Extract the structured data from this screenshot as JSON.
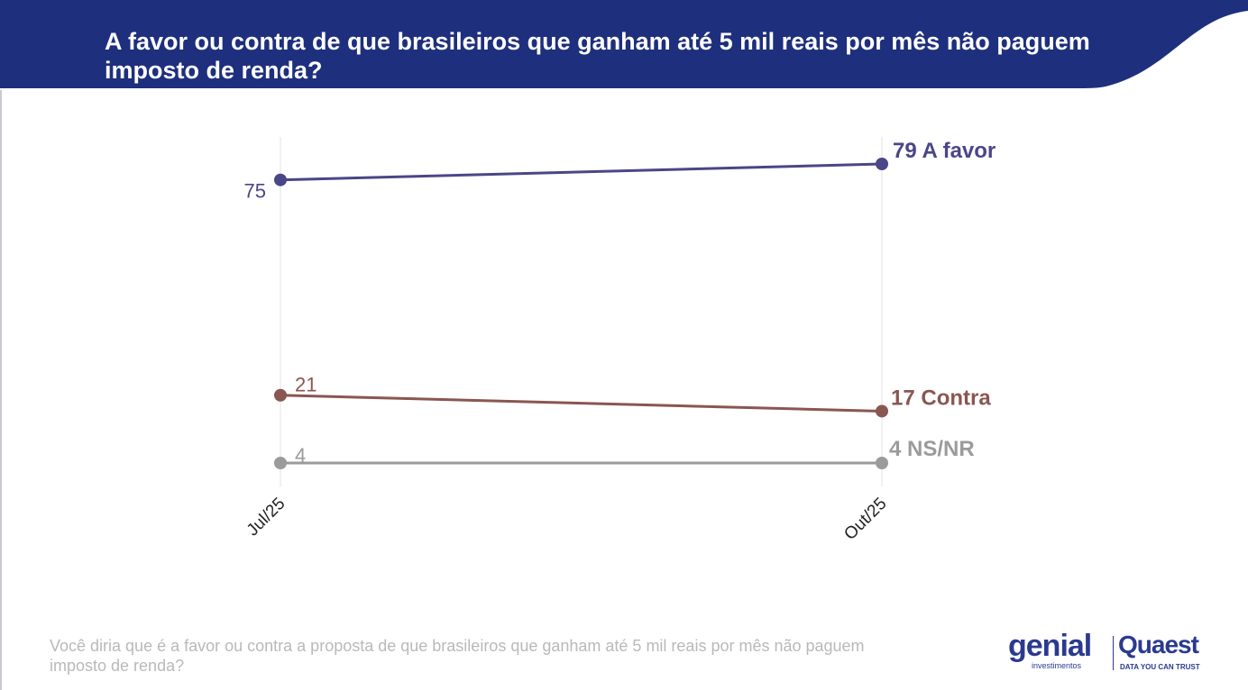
{
  "colors": {
    "header": "#1e2f7d",
    "a_favor": "#4b4687",
    "contra": "#8a5651",
    "nsnr": "#9b9b9b",
    "footnote": "#b9b9b9",
    "brand": "#2b3a8f"
  },
  "title": "A favor ou contra de que brasileiros que ganham até 5 mil reais por mês não paguem imposto de renda?",
  "footnote": "Você diria que é a favor ou contra a proposta de que brasileiros que ganham até 5 mil reais por mês não paguem imposto de renda?",
  "logos": {
    "genial_word": "genial",
    "genial_sub": "investimentos",
    "quaest_word": "Quaest",
    "quaest_sub": "DATA YOU CAN TRUST"
  },
  "chart_data": {
    "type": "line",
    "categories": [
      "Jul/25",
      "Out/25"
    ],
    "series": [
      {
        "name": "A favor",
        "values": [
          75,
          79
        ],
        "start_label": "75",
        "end_label": "79 A favor",
        "color": "#4b4687"
      },
      {
        "name": "Contra",
        "values": [
          21,
          17
        ],
        "start_label": "21",
        "end_label": "17 Contra",
        "color": "#8a5651"
      },
      {
        "name": "NS/NR",
        "values": [
          4,
          4
        ],
        "start_label": "4",
        "end_label": "4 NS/NR",
        "color": "#9b9b9b"
      }
    ],
    "xlabel": "",
    "ylabel": "",
    "ylim": [
      4,
      79
    ],
    "grid": "vertical"
  }
}
